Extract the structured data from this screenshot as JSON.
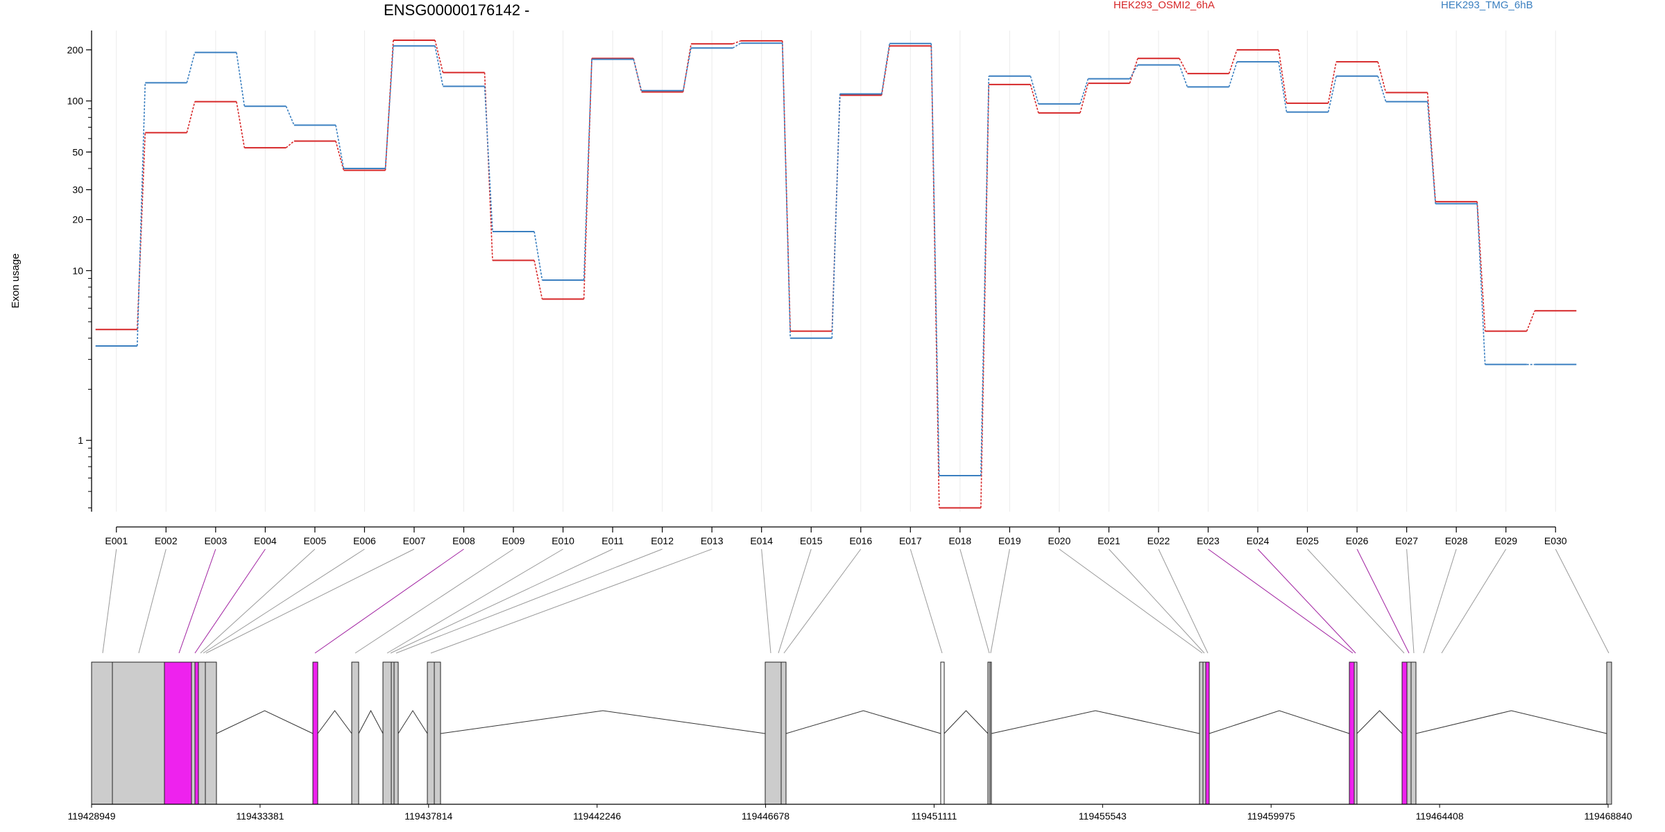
{
  "title": "ENSG00000176142 -",
  "ylabel": "Exon usage",
  "chart_data": {
    "type": "line",
    "title": "ENSG00000176142 -",
    "ylabel": "Exon usage",
    "y_scale": "log",
    "y_ticks": [
      1,
      10,
      20,
      30,
      50,
      100,
      200
    ],
    "ylim": [
      0.38,
      260
    ],
    "grid": "vertical",
    "legend_position": "top",
    "categories": [
      "E001",
      "E002",
      "E003",
      "E004",
      "E005",
      "E006",
      "E007",
      "E008",
      "E009",
      "E010",
      "E011",
      "E012",
      "E013",
      "E014",
      "E015",
      "E016",
      "E017",
      "E018",
      "E019",
      "E020",
      "E021",
      "E022",
      "E023",
      "E024",
      "E025",
      "E026",
      "E027",
      "E028",
      "E029",
      "E030"
    ],
    "series": [
      {
        "name": "HEK293_OSMI2_6hA",
        "color": "#d62728",
        "values": [
          4.5,
          65,
          99,
          53,
          58,
          39,
          228,
          147,
          11.5,
          6.8,
          178,
          113,
          217,
          226,
          4.4,
          108,
          211,
          0.4,
          125,
          85,
          127,
          178,
          145,
          200,
          97,
          170,
          112,
          25.5,
          4.4,
          5.8
        ]
      },
      {
        "name": "HEK293_TMG_6hB",
        "color": "#3a7fc0",
        "values": [
          3.6,
          128,
          193,
          93,
          72,
          40,
          211,
          122,
          17,
          8.8,
          176,
          115,
          205,
          219,
          4.0,
          110,
          218,
          0.62,
          140,
          96,
          135,
          163,
          121,
          170,
          86,
          140,
          99,
          24.8,
          2.8,
          2.8
        ]
      }
    ]
  },
  "gene_model": {
    "start_label": "119428949",
    "coordinate_labels": [
      "119428949",
      "119433381",
      "119437814",
      "119442246",
      "119446678",
      "119451111",
      "119455543",
      "119459975",
      "119464408",
      "119468840"
    ],
    "highlight_color": "#ee22ee",
    "exon_color": "#cccccc",
    "highlighted_exons": [
      "E003",
      "E004",
      "E008",
      "E023",
      "E024",
      "E026"
    ]
  }
}
